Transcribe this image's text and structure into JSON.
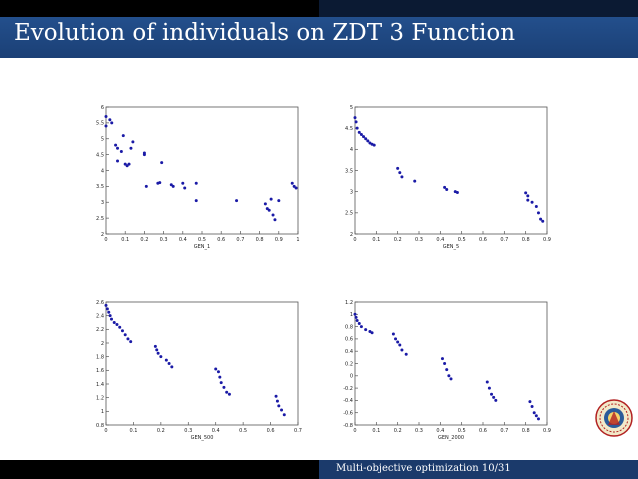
{
  "slide": {
    "title": "Evolution of individuals on ZDT 3 Function",
    "footer": "Multi-objective optimization 10/31",
    "logo": "university-seal"
  },
  "chart_data": [
    {
      "type": "scatter",
      "xlabel": "GEN_1",
      "xlim": [
        0,
        1
      ],
      "ylim": [
        2,
        6
      ],
      "xticks": [
        "0",
        "0.1",
        "0.2",
        "0.3",
        "0.4",
        "0.5",
        "0.6",
        "0.7",
        "0.8",
        "0.9",
        "1"
      ],
      "yticks": [
        "2",
        "2.5",
        "3",
        "3.5",
        "4",
        "4.5",
        "5",
        "5.5",
        "6"
      ],
      "color": "#1a1aa6",
      "points": [
        [
          0.0,
          5.7
        ],
        [
          0.02,
          5.6
        ],
        [
          0.03,
          5.5
        ],
        [
          0.0,
          5.4
        ],
        [
          0.05,
          4.8
        ],
        [
          0.06,
          4.7
        ],
        [
          0.08,
          4.6
        ],
        [
          0.06,
          4.3
        ],
        [
          0.09,
          5.1
        ],
        [
          0.1,
          4.2
        ],
        [
          0.11,
          4.15
        ],
        [
          0.12,
          4.2
        ],
        [
          0.13,
          4.7
        ],
        [
          0.14,
          4.9
        ],
        [
          0.2,
          4.55
        ],
        [
          0.2,
          4.5
        ],
        [
          0.29,
          4.25
        ],
        [
          0.21,
          3.5
        ],
        [
          0.27,
          3.6
        ],
        [
          0.28,
          3.62
        ],
        [
          0.34,
          3.55
        ],
        [
          0.35,
          3.5
        ],
        [
          0.4,
          3.6
        ],
        [
          0.41,
          3.45
        ],
        [
          0.47,
          3.6
        ],
        [
          0.47,
          3.05
        ],
        [
          0.68,
          3.05
        ],
        [
          0.83,
          2.95
        ],
        [
          0.86,
          3.1
        ],
        [
          0.84,
          2.8
        ],
        [
          0.85,
          2.75
        ],
        [
          0.87,
          2.6
        ],
        [
          0.88,
          2.45
        ],
        [
          0.9,
          3.05
        ],
        [
          0.97,
          3.6
        ],
        [
          0.98,
          3.5
        ],
        [
          0.99,
          3.45
        ]
      ]
    },
    {
      "type": "scatter",
      "xlabel": "GEN_5",
      "xlim": [
        0,
        0.9
      ],
      "ylim": [
        2,
        5
      ],
      "xticks": [
        "0",
        "0.1",
        "0.2",
        "0.3",
        "0.4",
        "0.5",
        "0.6",
        "0.7",
        "0.8",
        "0.9"
      ],
      "yticks": [
        "2",
        "2.5",
        "3",
        "3.5",
        "4",
        "4.5",
        "5"
      ],
      "color": "#1a1aa6",
      "points": [
        [
          0.0,
          4.75
        ],
        [
          0.005,
          4.65
        ],
        [
          0.01,
          4.5
        ],
        [
          0.02,
          4.4
        ],
        [
          0.03,
          4.35
        ],
        [
          0.04,
          4.3
        ],
        [
          0.05,
          4.25
        ],
        [
          0.06,
          4.2
        ],
        [
          0.07,
          4.15
        ],
        [
          0.08,
          4.12
        ],
        [
          0.09,
          4.1
        ],
        [
          0.2,
          3.55
        ],
        [
          0.21,
          3.45
        ],
        [
          0.22,
          3.35
        ],
        [
          0.28,
          3.25
        ],
        [
          0.42,
          3.1
        ],
        [
          0.43,
          3.05
        ],
        [
          0.47,
          3.0
        ],
        [
          0.48,
          2.98
        ],
        [
          0.8,
          2.97
        ],
        [
          0.81,
          2.9
        ],
        [
          0.81,
          2.8
        ],
        [
          0.83,
          2.75
        ],
        [
          0.85,
          2.65
        ],
        [
          0.86,
          2.5
        ],
        [
          0.87,
          2.35
        ],
        [
          0.88,
          2.3
        ]
      ]
    },
    {
      "type": "scatter",
      "xlabel": "GEN_500",
      "xlim": [
        0,
        0.7
      ],
      "ylim": [
        0.8,
        2.6
      ],
      "xticks": [
        "0",
        "0.1",
        "0.2",
        "0.3",
        "0.4",
        "0.5",
        "0.6",
        "0.7"
      ],
      "yticks": [
        "0.8",
        "1",
        "1.2",
        "1.4",
        "1.6",
        "1.8",
        "2",
        "2.2",
        "2.4",
        "2.6"
      ],
      "color": "#1a1aa6",
      "points": [
        [
          0.0,
          2.55
        ],
        [
          0.005,
          2.5
        ],
        [
          0.01,
          2.45
        ],
        [
          0.015,
          2.4
        ],
        [
          0.02,
          2.35
        ],
        [
          0.03,
          2.3
        ],
        [
          0.04,
          2.27
        ],
        [
          0.05,
          2.23
        ],
        [
          0.06,
          2.18
        ],
        [
          0.07,
          2.12
        ],
        [
          0.08,
          2.06
        ],
        [
          0.09,
          2.02
        ],
        [
          0.18,
          1.95
        ],
        [
          0.185,
          1.9
        ],
        [
          0.19,
          1.85
        ],
        [
          0.2,
          1.8
        ],
        [
          0.22,
          1.75
        ],
        [
          0.23,
          1.7
        ],
        [
          0.24,
          1.65
        ],
        [
          0.4,
          1.62
        ],
        [
          0.41,
          1.58
        ],
        [
          0.415,
          1.5
        ],
        [
          0.42,
          1.42
        ],
        [
          0.43,
          1.35
        ],
        [
          0.44,
          1.28
        ],
        [
          0.45,
          1.25
        ],
        [
          0.62,
          1.22
        ],
        [
          0.625,
          1.15
        ],
        [
          0.63,
          1.08
        ],
        [
          0.64,
          1.02
        ],
        [
          0.65,
          0.95
        ]
      ]
    },
    {
      "type": "scatter",
      "xlabel": "GEN_2000",
      "xlim": [
        0,
        0.9
      ],
      "ylim": [
        -0.8,
        1.2
      ],
      "xticks": [
        "0",
        "0.1",
        "0.2",
        "0.3",
        "0.4",
        "0.5",
        "0.6",
        "0.7",
        "0.8",
        "0.9"
      ],
      "yticks": [
        "-0.8",
        "-0.6",
        "-0.4",
        "-0.2",
        "0",
        "0.2",
        "0.4",
        "0.6",
        "0.8",
        "1",
        "1.2"
      ],
      "color": "#1a1aa6",
      "points": [
        [
          0.0,
          1.0
        ],
        [
          0.005,
          0.95
        ],
        [
          0.01,
          0.9
        ],
        [
          0.02,
          0.85
        ],
        [
          0.03,
          0.8
        ],
        [
          0.05,
          0.75
        ],
        [
          0.07,
          0.72
        ],
        [
          0.08,
          0.7
        ],
        [
          0.18,
          0.68
        ],
        [
          0.19,
          0.6
        ],
        [
          0.2,
          0.55
        ],
        [
          0.21,
          0.5
        ],
        [
          0.22,
          0.42
        ],
        [
          0.24,
          0.35
        ],
        [
          0.41,
          0.28
        ],
        [
          0.42,
          0.2
        ],
        [
          0.43,
          0.1
        ],
        [
          0.44,
          0.0
        ],
        [
          0.45,
          -0.05
        ],
        [
          0.62,
          -0.1
        ],
        [
          0.63,
          -0.2
        ],
        [
          0.64,
          -0.3
        ],
        [
          0.65,
          -0.35
        ],
        [
          0.66,
          -0.4
        ],
        [
          0.82,
          -0.42
        ],
        [
          0.83,
          -0.5
        ],
        [
          0.84,
          -0.6
        ],
        [
          0.85,
          -0.65
        ],
        [
          0.86,
          -0.7
        ]
      ]
    }
  ]
}
